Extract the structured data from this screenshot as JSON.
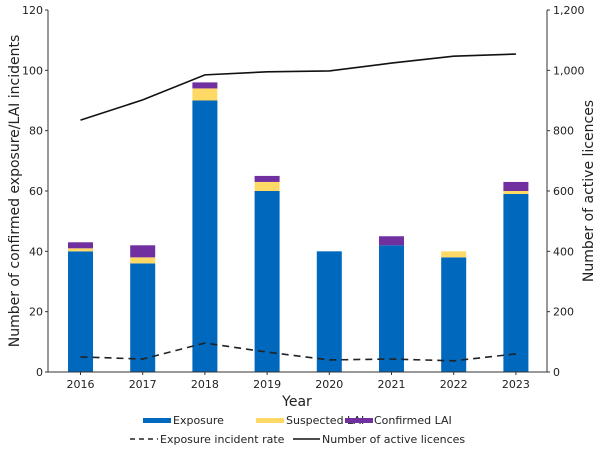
{
  "chart_data": {
    "type": "bar",
    "categories": [
      "2016",
      "2017",
      "2018",
      "2019",
      "2020",
      "2021",
      "2022",
      "2023"
    ],
    "series": [
      {
        "name": "Exposure",
        "kind": "stacked-bar",
        "axis": "left",
        "color": "#0068bd",
        "values": [
          40,
          36,
          90,
          60,
          40,
          42,
          38,
          59
        ]
      },
      {
        "name": "Suspected LAI",
        "kind": "stacked-bar",
        "axis": "left",
        "color": "#ffd966",
        "values": [
          1,
          2,
          4,
          3,
          0,
          0,
          2,
          1
        ]
      },
      {
        "name": "Confirmed LAI",
        "kind": "stacked-bar",
        "axis": "left",
        "color": "#7030a0",
        "values": [
          2,
          4,
          2,
          2,
          0,
          3,
          0,
          3
        ]
      },
      {
        "name": "Exposure incident rate",
        "kind": "dashed-line",
        "axis": "right",
        "color": "#222222",
        "values": [
          50,
          43,
          96,
          66,
          40,
          43,
          37,
          60
        ]
      },
      {
        "name": "Number of active licences",
        "kind": "line",
        "axis": "right",
        "color": "#111111",
        "values": [
          835,
          902,
          985,
          995,
          998,
          1024,
          1047,
          1054
        ]
      }
    ],
    "xlabel": "Year",
    "ylabel": "Number of confirmed exposure/LAI incidents",
    "y2label": "Number of active licences",
    "ylim": [
      0,
      120
    ],
    "y2lim": [
      0,
      1200
    ],
    "yticks": [
      "0",
      "20",
      "40",
      "60",
      "80",
      "100",
      "120"
    ],
    "y2ticks": [
      "0",
      "200",
      "400",
      "600",
      "800",
      "1,000",
      "1,200"
    ],
    "grid": false,
    "legend_position": "bottom"
  }
}
